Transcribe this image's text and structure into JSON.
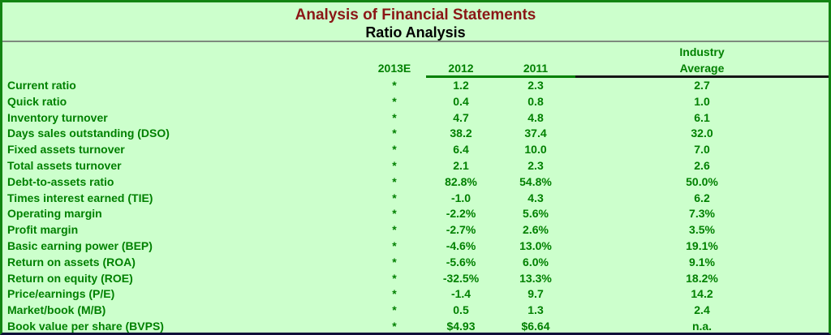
{
  "header": {
    "title": "Analysis of Financial Statements",
    "subtitle": "Ratio Analysis"
  },
  "table": {
    "column_headers": {
      "col_2013e": "2013E",
      "col_2012": "2012",
      "col_2011": "2011",
      "industry_line1": "Industry",
      "industry_line2": "Average"
    },
    "column_keys": [
      "2013e",
      "2012",
      "2011",
      "industry-average"
    ],
    "rows": [
      {
        "label": "Current ratio",
        "values": [
          "*",
          "1.2",
          "2.3",
          "2.7"
        ]
      },
      {
        "label": "Quick ratio",
        "values": [
          "*",
          "0.4",
          "0.8",
          "1.0"
        ]
      },
      {
        "label": "Inventory turnover",
        "values": [
          "*",
          "4.7",
          "4.8",
          "6.1"
        ]
      },
      {
        "label": "Days sales outstanding (DSO)",
        "values": [
          "*",
          "38.2",
          "37.4",
          "32.0"
        ]
      },
      {
        "label": "Fixed assets turnover",
        "values": [
          "*",
          "6.4",
          "10.0",
          "7.0"
        ]
      },
      {
        "label": "Total assets turnover",
        "values": [
          "*",
          "2.1",
          "2.3",
          "2.6"
        ]
      },
      {
        "label": "Debt-to-assets ratio",
        "values": [
          "*",
          "82.8%",
          "54.8%",
          "50.0%"
        ]
      },
      {
        "label": "Times interest earned (TIE)",
        "values": [
          "*",
          "-1.0",
          "4.3",
          "6.2"
        ]
      },
      {
        "label": "Operating margin",
        "values": [
          "*",
          "-2.2%",
          "5.6%",
          "7.3%"
        ]
      },
      {
        "label": "Profit margin",
        "values": [
          "*",
          "-2.7%",
          "2.6%",
          "3.5%"
        ]
      },
      {
        "label": "Basic earning power (BEP)",
        "values": [
          "*",
          "-4.6%",
          "13.0%",
          "19.1%"
        ]
      },
      {
        "label": "Return on assets (ROA)",
        "values": [
          "*",
          "-5.6%",
          "6.0%",
          "9.1%"
        ]
      },
      {
        "label": "Return on equity (ROE)",
        "values": [
          "*",
          "-32.5%",
          "13.3%",
          "18.2%"
        ]
      },
      {
        "label": "Price/earnings (P/E)",
        "values": [
          "*",
          "-1.4",
          "9.7",
          "14.2"
        ]
      },
      {
        "label": "Market/book (M/B)",
        "values": [
          "*",
          "0.5",
          "1.3",
          "2.4"
        ]
      },
      {
        "label": "Book value per share (BVPS)",
        "values": [
          "*",
          "$4.93",
          "$6.64",
          "n.a."
        ]
      }
    ]
  },
  "colors": {
    "background": "#ccffcc",
    "text_green": "#008000",
    "title_red": "#8b1616",
    "subtitle_black": "#000000",
    "outer_border_green": "#128412",
    "bottom_border_navy": "#10103a",
    "divider_gray": "#7d8a7d",
    "header_underline_green": "#008000",
    "header_underline_black": "#151515"
  }
}
